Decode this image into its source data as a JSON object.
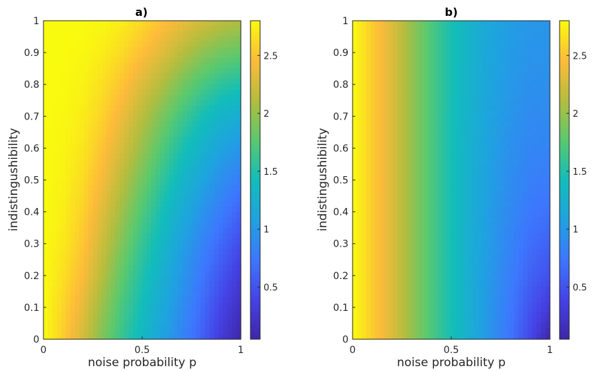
{
  "chart_data": [
    {
      "type": "heatmap",
      "title": "a)",
      "xlabel": "noise probability p",
      "ylabel": "indistingushibility",
      "xlim": [
        0,
        1
      ],
      "ylim": [
        0,
        1
      ],
      "xticks": [
        "0",
        "0.5",
        "1"
      ],
      "yticks": [
        "0",
        "0.1",
        "0.2",
        "0.3",
        "0.4",
        "0.5",
        "0.6",
        "0.7",
        "0.8",
        "0.9",
        "1"
      ],
      "x": [
        0,
        0.1,
        0.2,
        0.3,
        0.4,
        0.5,
        0.6,
        0.7,
        0.8,
        0.9,
        1.0
      ],
      "y": [
        0,
        0.1,
        0.2,
        0.3,
        0.4,
        0.5,
        0.6,
        0.7,
        0.8,
        0.9,
        1.0
      ],
      "z": [
        [
          2.8,
          2.55,
          2.25,
          1.9,
          1.6,
          1.35,
          1.1,
          0.85,
          0.6,
          0.3,
          0.05
        ],
        [
          2.8,
          2.6,
          2.35,
          2.0,
          1.68,
          1.42,
          1.17,
          0.92,
          0.67,
          0.4,
          0.17
        ],
        [
          2.8,
          2.65,
          2.45,
          2.12,
          1.78,
          1.5,
          1.25,
          1.0,
          0.75,
          0.52,
          0.3
        ],
        [
          2.8,
          2.7,
          2.52,
          2.22,
          1.9,
          1.6,
          1.35,
          1.08,
          0.85,
          0.64,
          0.45
        ],
        [
          2.8,
          2.73,
          2.58,
          2.32,
          2.02,
          1.72,
          1.45,
          1.2,
          0.98,
          0.78,
          0.6
        ],
        [
          2.8,
          2.75,
          2.63,
          2.42,
          2.14,
          1.86,
          1.58,
          1.33,
          1.12,
          0.93,
          0.78
        ],
        [
          2.8,
          2.77,
          2.68,
          2.5,
          2.27,
          2.0,
          1.73,
          1.48,
          1.28,
          1.1,
          0.98
        ],
        [
          2.8,
          2.78,
          2.72,
          2.58,
          2.38,
          2.14,
          1.9,
          1.66,
          1.46,
          1.3,
          1.2
        ],
        [
          2.8,
          2.79,
          2.75,
          2.65,
          2.5,
          2.3,
          2.1,
          1.88,
          1.7,
          1.56,
          1.48
        ],
        [
          2.8,
          2.8,
          2.78,
          2.72,
          2.62,
          2.48,
          2.32,
          2.14,
          1.98,
          1.86,
          1.8
        ],
        [
          2.8,
          2.8,
          2.8,
          2.78,
          2.72,
          2.62,
          2.5,
          2.38,
          2.26,
          2.16,
          2.1
        ]
      ],
      "colorbar": {
        "range": [
          0.05,
          2.8
        ],
        "ticks": [
          "0.5",
          "1",
          "1.5",
          "2",
          "2.5"
        ]
      }
    },
    {
      "type": "heatmap",
      "title": "b)",
      "xlabel": "noise probability p",
      "ylabel": "indistingushibility",
      "xlim": [
        0,
        1
      ],
      "ylim": [
        0,
        1
      ],
      "xticks": [
        "0",
        "0.5",
        "1"
      ],
      "yticks": [
        "0",
        "0.1",
        "0.2",
        "0.3",
        "0.4",
        "0.5",
        "0.6",
        "0.7",
        "0.8",
        "0.9",
        "1"
      ],
      "x": [
        0,
        0.1,
        0.2,
        0.3,
        0.4,
        0.5,
        0.6,
        0.7,
        0.8,
        0.9,
        1.0
      ],
      "y": [
        0,
        0.1,
        0.2,
        0.3,
        0.4,
        0.5,
        0.6,
        0.7,
        0.8,
        0.9,
        1.0
      ],
      "z": [
        [
          2.8,
          2.55,
          2.3,
          2.0,
          1.7,
          1.45,
          1.2,
          0.95,
          0.72,
          0.42,
          0.05
        ],
        [
          2.8,
          2.55,
          2.3,
          2.0,
          1.7,
          1.45,
          1.2,
          0.97,
          0.76,
          0.5,
          0.3
        ],
        [
          2.8,
          2.55,
          2.3,
          2.0,
          1.7,
          1.45,
          1.2,
          0.99,
          0.8,
          0.6,
          0.48
        ],
        [
          2.8,
          2.55,
          2.3,
          2.0,
          1.7,
          1.45,
          1.21,
          1.01,
          0.84,
          0.68,
          0.6
        ],
        [
          2.8,
          2.55,
          2.3,
          2.0,
          1.7,
          1.45,
          1.22,
          1.03,
          0.88,
          0.75,
          0.7
        ],
        [
          2.8,
          2.55,
          2.3,
          2.0,
          1.7,
          1.45,
          1.23,
          1.05,
          0.91,
          0.81,
          0.78
        ],
        [
          2.8,
          2.55,
          2.3,
          2.0,
          1.7,
          1.45,
          1.24,
          1.07,
          0.94,
          0.86,
          0.84
        ],
        [
          2.8,
          2.55,
          2.3,
          2.0,
          1.7,
          1.45,
          1.25,
          1.09,
          0.97,
          0.9,
          0.89
        ],
        [
          2.8,
          2.55,
          2.3,
          2.0,
          1.7,
          1.46,
          1.26,
          1.11,
          1.0,
          0.94,
          0.93
        ],
        [
          2.8,
          2.55,
          2.3,
          2.0,
          1.7,
          1.46,
          1.27,
          1.12,
          1.02,
          0.97,
          0.96
        ],
        [
          2.8,
          2.55,
          2.3,
          2.0,
          1.7,
          1.46,
          1.28,
          1.13,
          1.04,
          0.99,
          0.98
        ]
      ],
      "colorbar": {
        "range": [
          0.05,
          2.8
        ],
        "ticks": [
          "0.5",
          "1",
          "1.5",
          "2",
          "2.5"
        ]
      }
    }
  ]
}
